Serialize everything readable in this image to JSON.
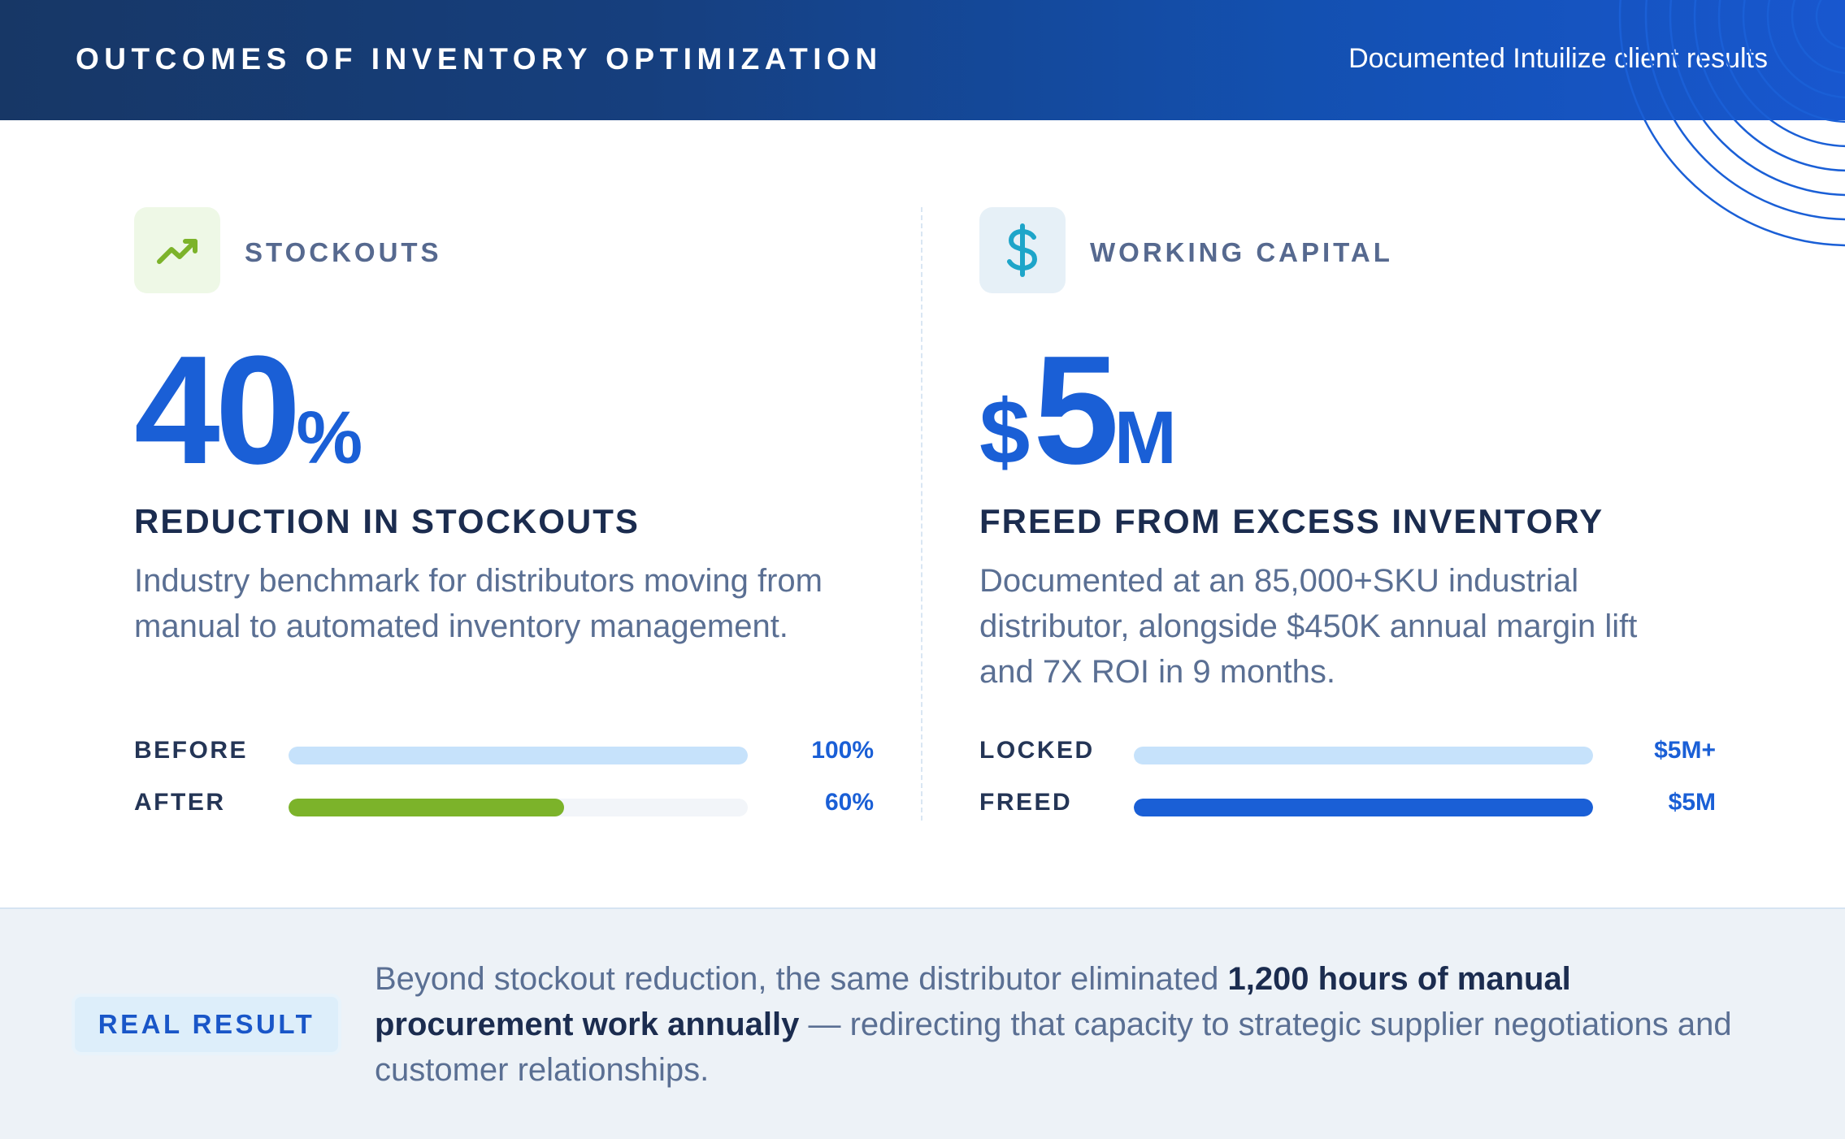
{
  "header": {
    "title": "OUTCOMES OF INVENTORY OPTIMIZATION",
    "subtitle": "Documented Intuilize client results"
  },
  "stockouts": {
    "icon": "trending-up-icon",
    "category": "STOCKOUTS",
    "big_number": "40",
    "big_unit": "%",
    "headline": "REDUCTION IN STOCKOUTS",
    "description": "Industry benchmark for distributors moving from manual to automated inventory management.",
    "bars": [
      {
        "label": "BEFORE",
        "value_text": "100%",
        "level": 1.0,
        "color": "#c6e2fb"
      },
      {
        "label": "AFTER",
        "value_text": "60%",
        "level": 0.6,
        "color": "#7cb32a"
      }
    ]
  },
  "capital": {
    "icon": "dollar-sign-icon",
    "category": "WORKING CAPITAL",
    "big_prefix": "$",
    "big_number": "5",
    "big_unit": "M",
    "headline": "FREED FROM EXCESS INVENTORY",
    "description": "Documented at an 85,000+SKU industrial distributor, alongside $450K annual margin lift and 7X ROI in 9 months.",
    "bars": [
      {
        "label": "LOCKED",
        "value_text": "$5M+",
        "level": 1.0,
        "color": "#c6e2fb"
      },
      {
        "label": "FREED",
        "value_text": "$5M",
        "level": 1.0,
        "color": "#1a5fd6"
      }
    ]
  },
  "footer": {
    "badge": "REAL RESULT",
    "text_pre": "Beyond stockout reduction, the same distributor eliminated ",
    "text_bold": "1,200 hours of manual procurement work annually",
    "text_post": " — redirecting that capacity to strategic supplier negotiations and customer relationships."
  },
  "colors": {
    "accent": "#1a5fd6",
    "green": "#7cb32a",
    "header_dark": "#173766",
    "header_light": "#1857cf"
  }
}
